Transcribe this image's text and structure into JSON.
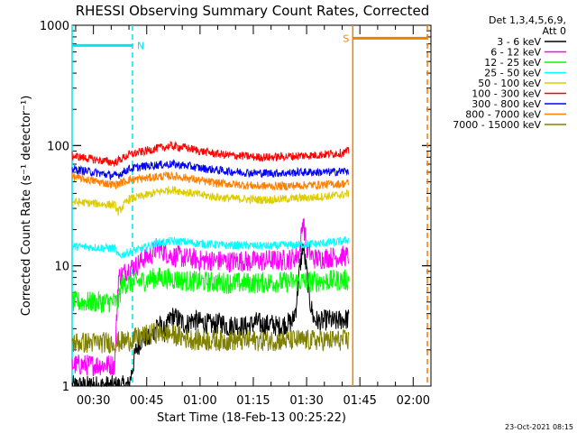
{
  "chart_data": {
    "type": "line",
    "title": "RHESSI Observing Summary Count Rates, Corrected",
    "ylabel": "Corrected Count Rate (s⁻¹ detector⁻¹)",
    "xlabel": "Start Time (18-Feb-13 00:25:22)",
    "yscale": "log",
    "ylim": [
      1,
      1000
    ],
    "xlim_minutes": [
      24,
      125
    ],
    "x_tick_labels": [
      "00:30",
      "00:45",
      "01:00",
      "01:15",
      "01:30",
      "01:45",
      "02:00"
    ],
    "x_tick_minutes": [
      30,
      45,
      60,
      75,
      90,
      105,
      120
    ],
    "y_tick_labels": [
      "1",
      "10",
      "100",
      "1000"
    ],
    "y_tick_values": [
      1,
      10,
      100,
      1000
    ],
    "legend_header": [
      "Det 1,3,4,5,6,9,",
      "Att 0"
    ],
    "legend_position": "right",
    "timestamp": "23-Oct-2021 08:15",
    "annotations": [
      {
        "label": "N",
        "x_start": 24,
        "x_end": 41,
        "y": 680,
        "color": "#00e5ee"
      },
      {
        "label": "S",
        "x_start": 103,
        "x_end": 124,
        "y": 780,
        "color": "#f08000"
      }
    ],
    "series": [
      {
        "name": "3 - 6 keV",
        "color": "#000000",
        "points": [
          [
            24,
            1.0
          ],
          [
            40,
            1.0
          ],
          [
            42,
            2.0
          ],
          [
            44,
            2.6
          ],
          [
            46,
            2.4
          ],
          [
            48,
            3.4
          ],
          [
            50,
            2.8
          ],
          [
            52,
            3.8
          ],
          [
            54,
            3.6
          ],
          [
            56,
            3.2
          ],
          [
            58,
            3.6
          ],
          [
            60,
            3.4
          ],
          [
            62,
            3.3
          ],
          [
            64,
            3.2
          ],
          [
            66,
            3.4
          ],
          [
            68,
            3.1
          ],
          [
            70,
            3.3
          ],
          [
            72,
            3.1
          ],
          [
            74,
            3.2
          ],
          [
            76,
            3.4
          ],
          [
            78,
            3.2
          ],
          [
            80,
            3.3
          ],
          [
            82,
            3.1
          ],
          [
            84,
            3.3
          ],
          [
            86,
            3.4
          ],
          [
            87,
            4.5
          ],
          [
            88,
            9.0
          ],
          [
            89,
            15.0
          ],
          [
            90,
            9.0
          ],
          [
            91,
            5.0
          ],
          [
            92,
            3.6
          ],
          [
            94,
            3.4
          ],
          [
            96,
            3.6
          ],
          [
            98,
            3.4
          ],
          [
            100,
            3.6
          ],
          [
            102,
            3.6
          ]
        ]
      },
      {
        "name": "6 - 12 keV",
        "color": "#ff00ff",
        "points": [
          [
            24,
            1.5
          ],
          [
            36,
            1.5
          ],
          [
            37,
            8.0
          ],
          [
            40,
            9.5
          ],
          [
            42,
            10.0
          ],
          [
            44,
            11.5
          ],
          [
            46,
            12.0
          ],
          [
            48,
            14.5
          ],
          [
            50,
            13.0
          ],
          [
            52,
            12.0
          ],
          [
            54,
            12.0
          ],
          [
            56,
            11.5
          ],
          [
            58,
            11.5
          ],
          [
            60,
            11.0
          ],
          [
            62,
            11.2
          ],
          [
            64,
            11.0
          ],
          [
            66,
            11.0
          ],
          [
            68,
            10.8
          ],
          [
            70,
            11.0
          ],
          [
            72,
            11.0
          ],
          [
            74,
            10.8
          ],
          [
            76,
            11.0
          ],
          [
            78,
            11.0
          ],
          [
            80,
            11.2
          ],
          [
            82,
            11.0
          ],
          [
            84,
            11.2
          ],
          [
            86,
            11.5
          ],
          [
            88,
            12.5
          ],
          [
            89,
            25.0
          ],
          [
            90,
            14.0
          ],
          [
            92,
            11.5
          ],
          [
            94,
            11.5
          ],
          [
            96,
            11.8
          ],
          [
            98,
            11.8
          ],
          [
            100,
            12.0
          ],
          [
            102,
            12.0
          ]
        ]
      },
      {
        "name": "12 - 25 keV",
        "color": "#00ff00",
        "points": [
          [
            24,
            5.0
          ],
          [
            37,
            5.0
          ],
          [
            38,
            7.0
          ],
          [
            40,
            7.2
          ],
          [
            44,
            7.5
          ],
          [
            48,
            8.0
          ],
          [
            52,
            7.8
          ],
          [
            56,
            7.5
          ],
          [
            60,
            7.4
          ],
          [
            64,
            7.3
          ],
          [
            68,
            7.2
          ],
          [
            72,
            7.2
          ],
          [
            76,
            7.2
          ],
          [
            80,
            7.3
          ],
          [
            84,
            7.3
          ],
          [
            88,
            7.4
          ],
          [
            92,
            7.4
          ],
          [
            96,
            7.5
          ],
          [
            100,
            7.6
          ],
          [
            102,
            7.6
          ]
        ]
      },
      {
        "name": "25 - 50 keV",
        "color": "#00ffff",
        "points": [
          [
            24,
            14.5
          ],
          [
            36,
            14.0
          ],
          [
            37,
            12.0
          ],
          [
            40,
            13.0
          ],
          [
            44,
            14.0
          ],
          [
            48,
            15.5
          ],
          [
            52,
            16.0
          ],
          [
            56,
            15.8
          ],
          [
            60,
            15.3
          ],
          [
            64,
            15.0
          ],
          [
            68,
            14.8
          ],
          [
            72,
            14.8
          ],
          [
            76,
            14.6
          ],
          [
            80,
            14.6
          ],
          [
            84,
            14.8
          ],
          [
            88,
            15.0
          ],
          [
            92,
            15.2
          ],
          [
            96,
            15.5
          ],
          [
            100,
            16.0
          ],
          [
            102,
            16.5
          ]
        ]
      },
      {
        "name": "50 - 100 keV",
        "color": "#ddcc00",
        "points": [
          [
            24,
            34.0
          ],
          [
            36,
            32.0
          ],
          [
            37,
            28.0
          ],
          [
            40,
            36.0
          ],
          [
            44,
            38.0
          ],
          [
            48,
            41.0
          ],
          [
            52,
            43.0
          ],
          [
            56,
            41.0
          ],
          [
            60,
            39.0
          ],
          [
            64,
            37.5
          ],
          [
            68,
            36.5
          ],
          [
            72,
            36.0
          ],
          [
            76,
            35.5
          ],
          [
            80,
            35.5
          ],
          [
            84,
            36.0
          ],
          [
            88,
            36.5
          ],
          [
            92,
            37.0
          ],
          [
            96,
            38.0
          ],
          [
            100,
            39.0
          ],
          [
            102,
            40.0
          ]
        ]
      },
      {
        "name": "100 - 300 keV",
        "color": "#ff0000",
        "points": [
          [
            24,
            82.0
          ],
          [
            36,
            72.0
          ],
          [
            37,
            75.0
          ],
          [
            40,
            84.0
          ],
          [
            44,
            89.0
          ],
          [
            48,
            95.0
          ],
          [
            52,
            99.0
          ],
          [
            56,
            96.0
          ],
          [
            60,
            90.0
          ],
          [
            64,
            86.0
          ],
          [
            68,
            83.0
          ],
          [
            72,
            82.0
          ],
          [
            76,
            80.0
          ],
          [
            80,
            80.0
          ],
          [
            84,
            81.0
          ],
          [
            88,
            82.0
          ],
          [
            92,
            83.0
          ],
          [
            96,
            85.0
          ],
          [
            100,
            87.0
          ],
          [
            102,
            90.0
          ]
        ]
      },
      {
        "name": "300 - 800 keV",
        "color": "#0000ff",
        "points": [
          [
            24,
            64.0
          ],
          [
            36,
            56.0
          ],
          [
            37,
            57.0
          ],
          [
            40,
            64.0
          ],
          [
            44,
            67.0
          ],
          [
            48,
            69.0
          ],
          [
            52,
            70.0
          ],
          [
            56,
            68.0
          ],
          [
            60,
            65.0
          ],
          [
            64,
            63.0
          ],
          [
            68,
            61.0
          ],
          [
            72,
            60.0
          ],
          [
            76,
            59.0
          ],
          [
            80,
            59.0
          ],
          [
            84,
            59.0
          ],
          [
            88,
            60.0
          ],
          [
            92,
            60.0
          ],
          [
            96,
            60.0
          ],
          [
            100,
            61.0
          ],
          [
            102,
            62.0
          ]
        ]
      },
      {
        "name": "800 - 7000 keV",
        "color": "#ff8000",
        "points": [
          [
            24,
            55.0
          ],
          [
            36,
            47.0
          ],
          [
            37,
            48.0
          ],
          [
            40,
            52.0
          ],
          [
            44,
            53.0
          ],
          [
            48,
            55.0
          ],
          [
            52,
            56.0
          ],
          [
            56,
            54.0
          ],
          [
            60,
            51.0
          ],
          [
            64,
            49.0
          ],
          [
            68,
            48.0
          ],
          [
            72,
            47.0
          ],
          [
            76,
            46.0
          ],
          [
            80,
            46.0
          ],
          [
            84,
            46.0
          ],
          [
            88,
            46.5
          ],
          [
            92,
            47.0
          ],
          [
            96,
            47.5
          ],
          [
            100,
            48.0
          ],
          [
            102,
            49.0
          ]
        ]
      },
      {
        "name": "7000 - 15000 keV",
        "color": "#808000",
        "points": [
          [
            24,
            2.3
          ],
          [
            36,
            2.3
          ],
          [
            40,
            2.4
          ],
          [
            44,
            2.6
          ],
          [
            48,
            2.8
          ],
          [
            52,
            2.7
          ],
          [
            56,
            2.5
          ],
          [
            60,
            2.4
          ],
          [
            64,
            2.4
          ],
          [
            68,
            2.4
          ],
          [
            72,
            2.4
          ],
          [
            76,
            2.4
          ],
          [
            80,
            2.4
          ],
          [
            84,
            2.4
          ],
          [
            88,
            2.4
          ],
          [
            92,
            2.4
          ],
          [
            96,
            2.4
          ],
          [
            100,
            2.4
          ],
          [
            102,
            2.4
          ]
        ]
      }
    ]
  }
}
